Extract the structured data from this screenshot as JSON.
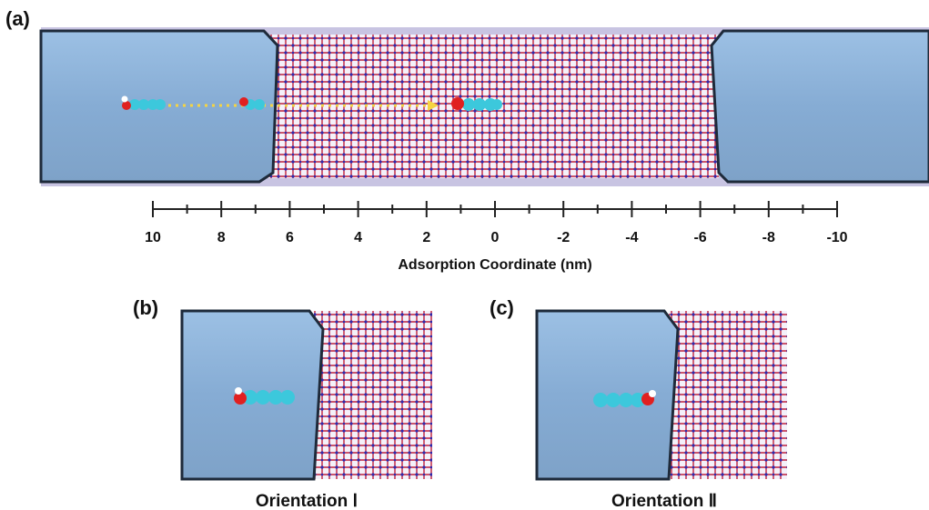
{
  "panel_a": {
    "label": "(a)",
    "axis": {
      "xlim": [
        10,
        -10
      ],
      "ticks": [
        10,
        8,
        6,
        4,
        2,
        0,
        -2,
        -4,
        -6,
        -8,
        -10
      ],
      "minor_ticks": [
        9,
        7,
        5,
        3,
        1,
        -1,
        -3,
        -5,
        -7,
        -9
      ],
      "label": "Adsorption Coordinate (nm)"
    }
  },
  "panel_b": {
    "label": "(b)",
    "caption": "Orientation Ⅰ"
  },
  "panel_c": {
    "label": "(c)",
    "caption": "Orientation Ⅱ"
  }
}
